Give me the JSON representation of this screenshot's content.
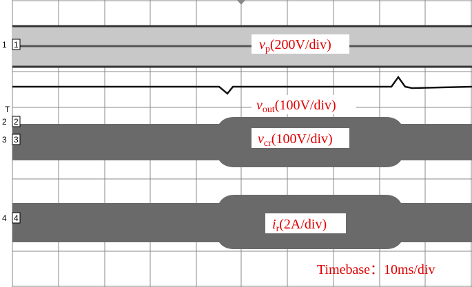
{
  "traces": [
    {
      "symbol": "v",
      "subscript": "p",
      "scale": "(200V/div)"
    },
    {
      "symbol": "v",
      "subscript": "out",
      "scale": "(100V/div)"
    },
    {
      "symbol": "v",
      "subscript": "cr",
      "scale": "(100V/div)"
    },
    {
      "symbol": "i",
      "subscript": "r",
      "scale": "(2A/div)"
    }
  ],
  "channels": [
    "1",
    "2",
    "3",
    "4"
  ],
  "trigger_marker": "T",
  "timebase": "Timebase：10ms/div"
}
